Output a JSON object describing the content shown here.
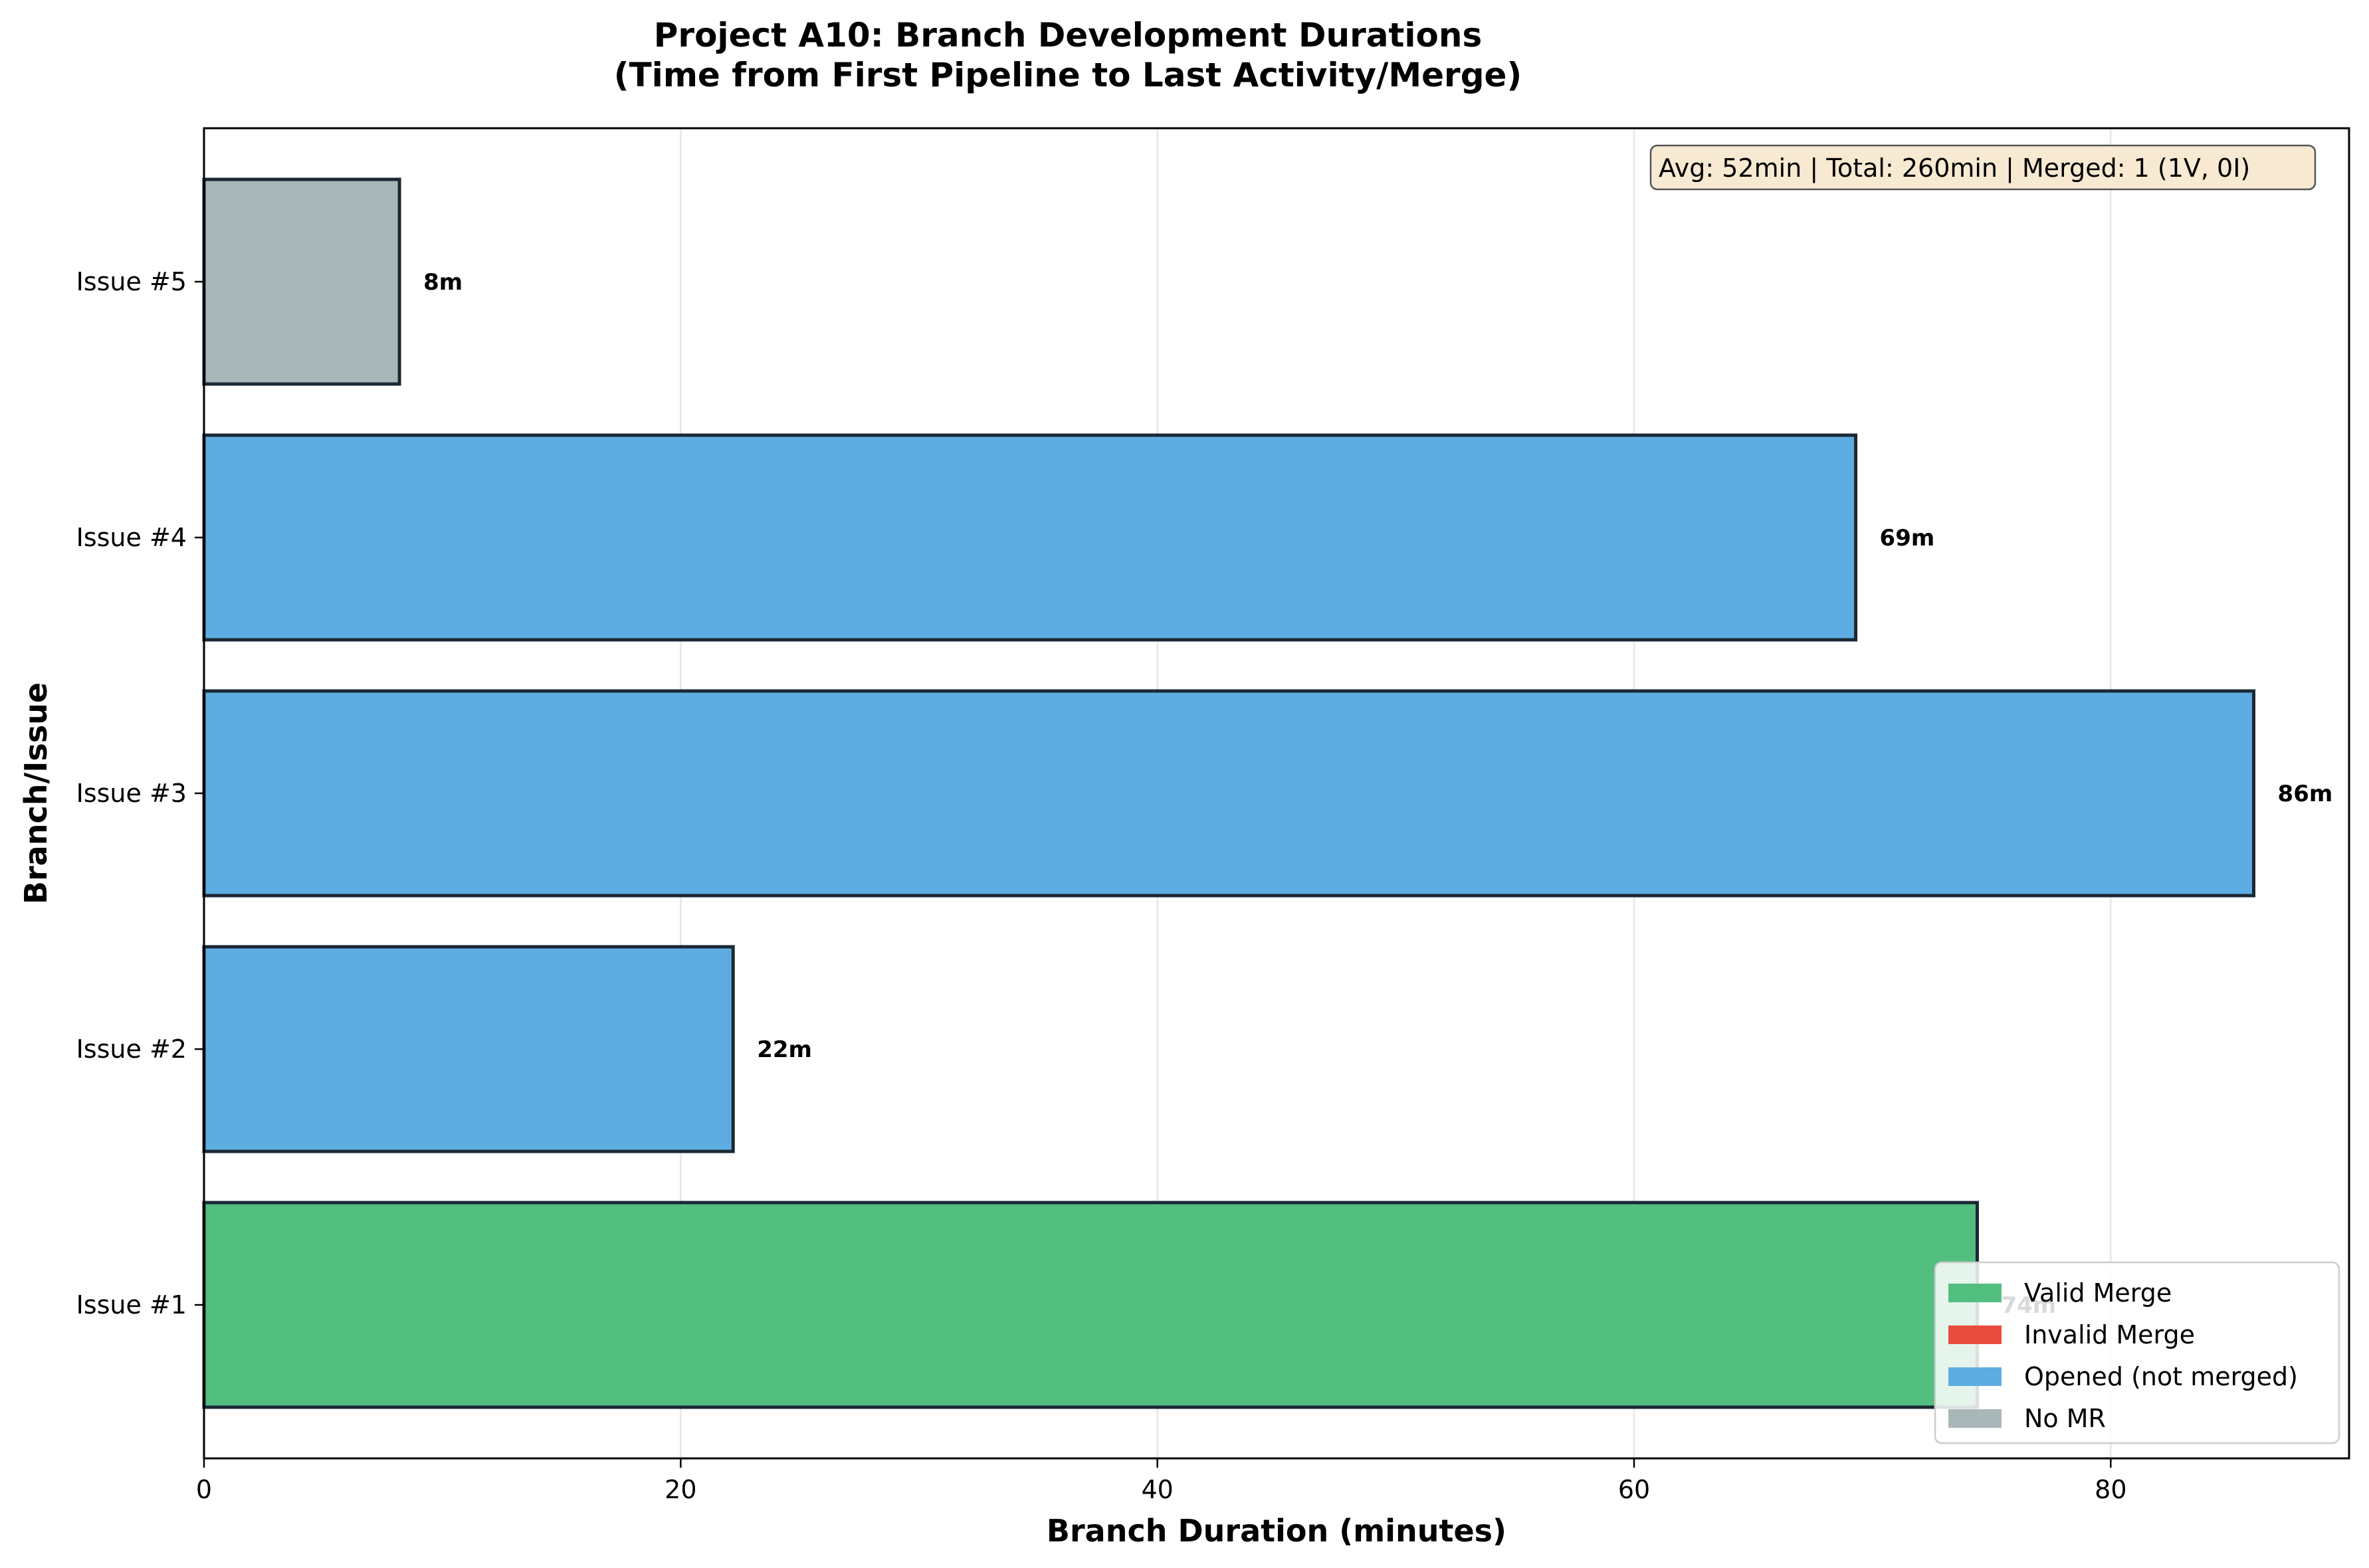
{
  "chart_data": {
    "type": "bar",
    "orientation": "horizontal",
    "title": "Project A10: Branch Development Durations",
    "subtitle": "(Time from First Pipeline to Last Activity/Merge)",
    "xlabel": "Branch Duration (minutes)",
    "ylabel": "Branch/Issue",
    "xlim": [
      0,
      90
    ],
    "x_ticks": [
      0,
      20,
      40,
      60,
      80
    ],
    "grid": "vertical",
    "categories": [
      "Issue #1",
      "Issue #2",
      "Issue #3",
      "Issue #4",
      "Issue #5"
    ],
    "values": [
      74.4,
      22.2,
      86,
      69.3,
      8.2
    ],
    "value_labels": [
      "74m",
      "22m",
      "86m",
      "69m",
      "8m"
    ],
    "bar_status": [
      "Valid Merge",
      "Opened (not merged)",
      "Opened (not merged)",
      "Opened (not merged)",
      "No MR"
    ],
    "legend": {
      "placement": "bottom-right",
      "entries": [
        {
          "label": "Valid Merge",
          "color": "#52be80"
        },
        {
          "label": "Invalid Merge",
          "color": "#e74c3c"
        },
        {
          "label": "Opened (not merged)",
          "color": "#5dade2"
        },
        {
          "label": "No MR",
          "color": "#aab7b8"
        }
      ]
    },
    "stats_box": "Avg: 52min | Total: 260min | Merged: 1 (1V, 0I)",
    "colors": {
      "Valid Merge": "#52be80",
      "Invalid Merge": "#e74c3c",
      "Opened (not merged)": "#5dade2",
      "No MR": "#aab7b8",
      "edge": "#1c2833",
      "stats_bg": "#f7e9d2"
    }
  }
}
